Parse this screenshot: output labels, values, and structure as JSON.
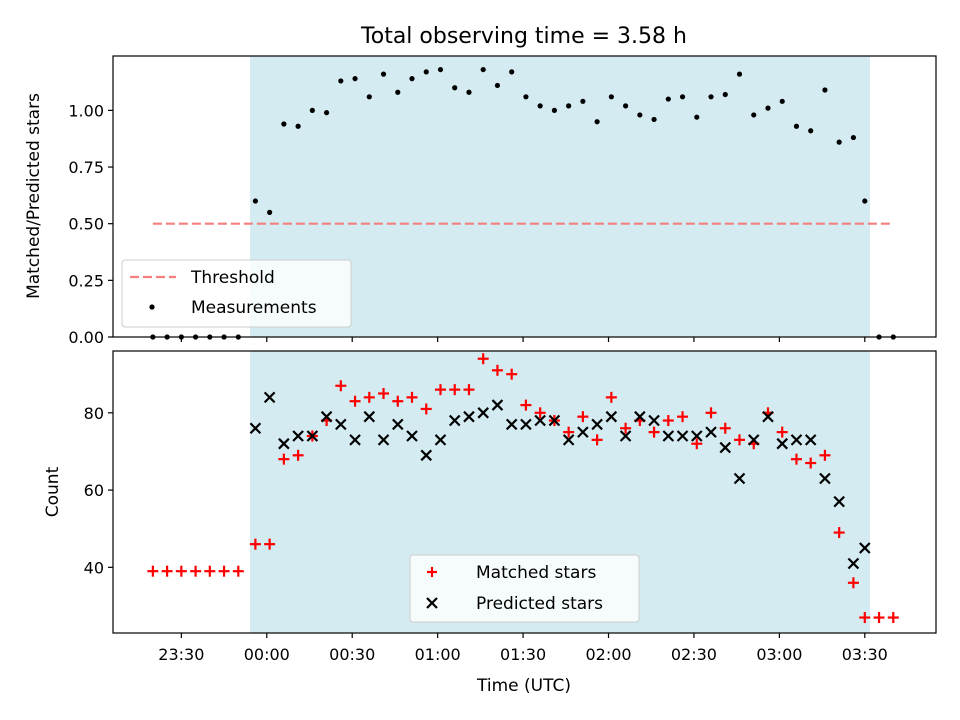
{
  "colors": {
    "observing_window": "#d3ebf1",
    "threshold": "#f47f7f",
    "measurements": "#000000",
    "matched": "#ff0000",
    "predicted": "#000000"
  },
  "chart_data": [
    {
      "type": "scatter",
      "title": "Total observing time = 3.58 h",
      "xlabel": "",
      "ylabel": "Matched/Predicted stars",
      "ylim": [
        0,
        1.24
      ],
      "xlim": [
        "23:06",
        "03:55"
      ],
      "yticks": [
        "0.00",
        "0.25",
        "0.50",
        "0.75",
        "1.00"
      ],
      "observing_window": {
        "start": "23:56",
        "end": "03:30"
      },
      "legend": {
        "position": "lower-left",
        "entries": [
          "Threshold",
          "Measurements"
        ]
      },
      "series": [
        {
          "name": "Threshold",
          "kind": "dashed-line",
          "x": [
            "23:20",
            "03:40"
          ],
          "y": [
            0.5,
            0.5
          ]
        },
        {
          "name": "Measurements",
          "kind": "dots",
          "x": [
            "23:20",
            "23:25",
            "23:30",
            "23:35",
            "23:40",
            "23:45",
            "23:50",
            "23:56",
            "00:01",
            "00:06",
            "00:11",
            "00:16",
            "00:21",
            "00:26",
            "00:31",
            "00:36",
            "00:41",
            "00:46",
            "00:51",
            "00:56",
            "01:01",
            "01:06",
            "01:11",
            "01:16",
            "01:21",
            "01:26",
            "01:31",
            "01:36",
            "01:41",
            "01:46",
            "01:51",
            "01:56",
            "02:01",
            "02:06",
            "02:11",
            "02:16",
            "02:21",
            "02:26",
            "02:31",
            "02:36",
            "02:41",
            "02:46",
            "02:51",
            "02:56",
            "03:01",
            "03:06",
            "03:11",
            "03:16",
            "03:21",
            "03:26",
            "03:30",
            "03:35",
            "03:40"
          ],
          "y": [
            0.0,
            0.0,
            0.0,
            0.0,
            0.0,
            0.0,
            0.0,
            0.6,
            0.55,
            0.94,
            0.93,
            1.0,
            0.99,
            1.13,
            1.14,
            1.06,
            1.16,
            1.08,
            1.14,
            1.17,
            1.18,
            1.1,
            1.08,
            1.18,
            1.11,
            1.17,
            1.06,
            1.02,
            1.0,
            1.02,
            1.04,
            0.95,
            1.06,
            1.02,
            0.98,
            0.96,
            1.05,
            1.06,
            0.97,
            1.06,
            1.07,
            1.16,
            0.98,
            1.01,
            1.04,
            0.93,
            0.91,
            1.09,
            0.86,
            0.88,
            0.6,
            0.0,
            0.0
          ]
        }
      ]
    },
    {
      "type": "scatter",
      "title": "",
      "xlabel": "Time (UTC)",
      "ylabel": "Count",
      "ylim": [
        23,
        96
      ],
      "xlim": [
        "23:06",
        "03:55"
      ],
      "xticks": [
        "23:30",
        "00:00",
        "00:30",
        "01:00",
        "01:30",
        "02:00",
        "02:30",
        "03:00",
        "03:30"
      ],
      "yticks": [
        "40",
        "60",
        "80"
      ],
      "observing_window": {
        "start": "23:56",
        "end": "03:30"
      },
      "legend": {
        "position": "lower-center",
        "entries": [
          "Matched stars",
          "Predicted stars"
        ]
      },
      "series": [
        {
          "name": "Matched stars",
          "marker": "plus",
          "x": [
            "23:20",
            "23:25",
            "23:30",
            "23:35",
            "23:40",
            "23:45",
            "23:50",
            "23:56",
            "00:01",
            "00:06",
            "00:11",
            "00:16",
            "00:21",
            "00:26",
            "00:31",
            "00:36",
            "00:41",
            "00:46",
            "00:51",
            "00:56",
            "01:01",
            "01:06",
            "01:11",
            "01:16",
            "01:21",
            "01:26",
            "01:31",
            "01:36",
            "01:41",
            "01:46",
            "01:51",
            "01:56",
            "02:01",
            "02:06",
            "02:11",
            "02:16",
            "02:21",
            "02:26",
            "02:31",
            "02:36",
            "02:41",
            "02:46",
            "02:51",
            "02:56",
            "03:01",
            "03:06",
            "03:11",
            "03:16",
            "03:21",
            "03:26",
            "03:30",
            "03:35",
            "03:40"
          ],
          "y": [
            39,
            39,
            39,
            39,
            39,
            39,
            39,
            46,
            46,
            68,
            69,
            74,
            78,
            87,
            83,
            84,
            85,
            83,
            84,
            81,
            86,
            86,
            86,
            94,
            91,
            90,
            82,
            80,
            78,
            75,
            79,
            73,
            84,
            76,
            78,
            75,
            78,
            79,
            72,
            80,
            76,
            73,
            72,
            80,
            75,
            68,
            67,
            69,
            49,
            36,
            27,
            27,
            27
          ]
        },
        {
          "name": "Predicted stars",
          "marker": "x",
          "x": [
            "23:56",
            "00:01",
            "00:06",
            "00:11",
            "00:16",
            "00:21",
            "00:26",
            "00:31",
            "00:36",
            "00:41",
            "00:46",
            "00:51",
            "00:56",
            "01:01",
            "01:06",
            "01:11",
            "01:16",
            "01:21",
            "01:26",
            "01:31",
            "01:36",
            "01:41",
            "01:46",
            "01:51",
            "01:56",
            "02:01",
            "02:06",
            "02:11",
            "02:16",
            "02:21",
            "02:26",
            "02:31",
            "02:36",
            "02:41",
            "02:46",
            "02:51",
            "02:56",
            "03:01",
            "03:06",
            "03:11",
            "03:16",
            "03:21",
            "03:26",
            "03:30"
          ],
          "y": [
            76,
            84,
            72,
            74,
            74,
            79,
            77,
            73,
            79,
            73,
            77,
            74,
            69,
            73,
            78,
            79,
            80,
            82,
            77,
            77,
            78,
            78,
            73,
            75,
            77,
            79,
            74,
            79,
            78,
            74,
            74,
            74,
            75,
            71,
            63,
            73,
            79,
            72,
            73,
            73,
            63,
            57,
            41,
            45
          ]
        }
      ]
    }
  ]
}
